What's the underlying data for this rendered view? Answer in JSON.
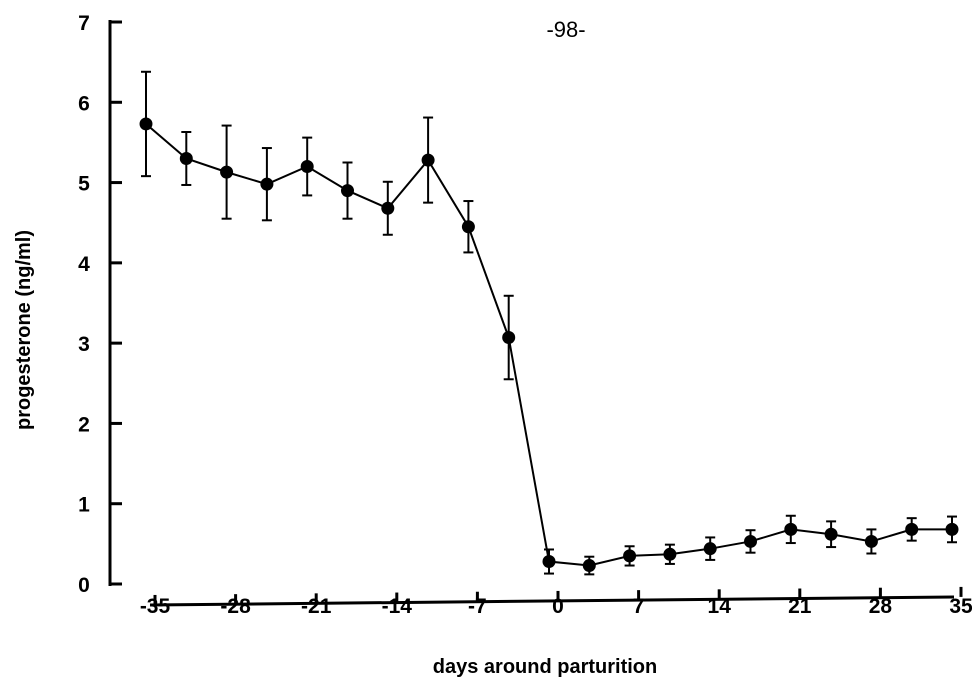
{
  "page_number": "-98-",
  "chart_data": {
    "type": "line",
    "title": "",
    "xlabel": "days around parturition",
    "ylabel": "progesterone (ng/ml)",
    "xlim": [
      -35,
      35
    ],
    "ylim": [
      0,
      7
    ],
    "grid": false,
    "legend": "none",
    "x_ticks": [
      -35,
      -28,
      -21,
      -14,
      -7,
      0,
      7,
      14,
      21,
      28,
      35
    ],
    "x_tick_labels": [
      "-35",
      "-28",
      "-21",
      "-14",
      "-7",
      "0",
      "7",
      "14",
      "21",
      "28",
      "35"
    ],
    "y_ticks": [
      0,
      1,
      2,
      3,
      4,
      5,
      6,
      7
    ],
    "y_tick_labels": [
      "0",
      "1",
      "2",
      "3",
      "4",
      "5",
      "6",
      "7"
    ],
    "series": [
      {
        "color": "#000000",
        "marker": "filled-circle",
        "x": [
          -35,
          -31.5,
          -28,
          -24.5,
          -21,
          -17.5,
          -14,
          -10.5,
          -7,
          -3.5,
          0,
          3.5,
          7,
          10.5,
          14,
          17.5,
          21,
          24.5,
          28,
          31.5,
          35
        ],
        "y": [
          5.73,
          5.3,
          5.13,
          4.98,
          5.2,
          4.9,
          4.68,
          5.28,
          4.45,
          3.07,
          0.28,
          0.23,
          0.35,
          0.37,
          0.44,
          0.53,
          0.68,
          0.62,
          0.53,
          0.68,
          0.68
        ],
        "error": [
          0.65,
          0.33,
          0.58,
          0.45,
          0.36,
          0.35,
          0.33,
          0.53,
          0.32,
          0.52,
          0.15,
          0.11,
          0.12,
          0.12,
          0.14,
          0.14,
          0.17,
          0.16,
          0.15,
          0.14,
          0.16
        ]
      }
    ]
  }
}
